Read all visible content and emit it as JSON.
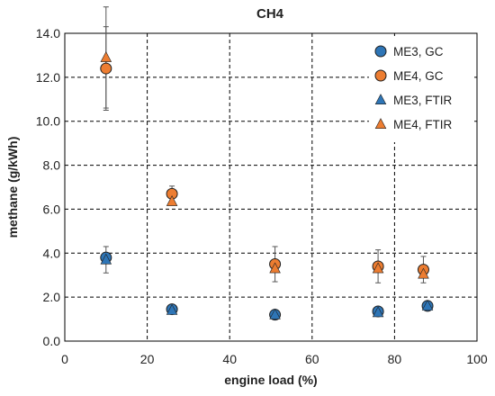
{
  "chart_data": {
    "type": "scatter",
    "title": "CH4",
    "xlabel": "engine load (%)",
    "ylabel": "methane (g/kWh)",
    "xlim": [
      0,
      100
    ],
    "ylim": [
      0,
      14
    ],
    "xticks": [
      0,
      20,
      40,
      60,
      80,
      100
    ],
    "yticks": [
      0,
      2,
      4,
      6,
      8,
      10,
      12,
      14
    ],
    "xtick_labels": [
      "0",
      "20",
      "40",
      "60",
      "80",
      "100"
    ],
    "ytick_labels": [
      "0.0",
      "2.0",
      "4.0",
      "6.0",
      "8.0",
      "10.0",
      "12.0",
      "14.0"
    ],
    "grid": true,
    "legend_position": "top-right",
    "series": [
      {
        "name": "ME3, GC",
        "marker": "circle",
        "color": "#2E75B6",
        "points": [
          {
            "x": 10,
            "y": 3.8,
            "err": 0
          },
          {
            "x": 26,
            "y": 1.45,
            "err": 0
          },
          {
            "x": 51,
            "y": 1.2,
            "err": 0
          },
          {
            "x": 76,
            "y": 1.35,
            "err": 0
          },
          {
            "x": 88,
            "y": 1.6,
            "err": 0
          }
        ]
      },
      {
        "name": "ME4, GC",
        "marker": "circle",
        "color": "#ED7D31",
        "points": [
          {
            "x": 10,
            "y": 12.4,
            "err": 1.9
          },
          {
            "x": 26,
            "y": 6.7,
            "err": 0.35
          },
          {
            "x": 51,
            "y": 3.5,
            "err": 0.8
          },
          {
            "x": 76,
            "y": 3.4,
            "err": 0.75
          },
          {
            "x": 87,
            "y": 3.25,
            "err": 0.6
          }
        ]
      },
      {
        "name": "ME3, FTIR",
        "marker": "triangle",
        "color": "#2E75B6",
        "points": [
          {
            "x": 10,
            "y": 3.7,
            "err": 0.6
          },
          {
            "x": 26,
            "y": 1.4,
            "err": 0
          },
          {
            "x": 51,
            "y": 1.2,
            "err": 0
          },
          {
            "x": 76,
            "y": 1.3,
            "err": 0
          },
          {
            "x": 88,
            "y": 1.6,
            "err": 0
          }
        ]
      },
      {
        "name": "ME4, FTIR",
        "marker": "triangle",
        "color": "#ED7D31",
        "points": [
          {
            "x": 10,
            "y": 12.9,
            "err": 2.3
          },
          {
            "x": 26,
            "y": 6.35,
            "err": 0
          },
          {
            "x": 51,
            "y": 3.3,
            "err": 0
          },
          {
            "x": 76,
            "y": 3.3,
            "err": 0
          },
          {
            "x": 87,
            "y": 3.05,
            "err": 0
          }
        ]
      }
    ]
  }
}
